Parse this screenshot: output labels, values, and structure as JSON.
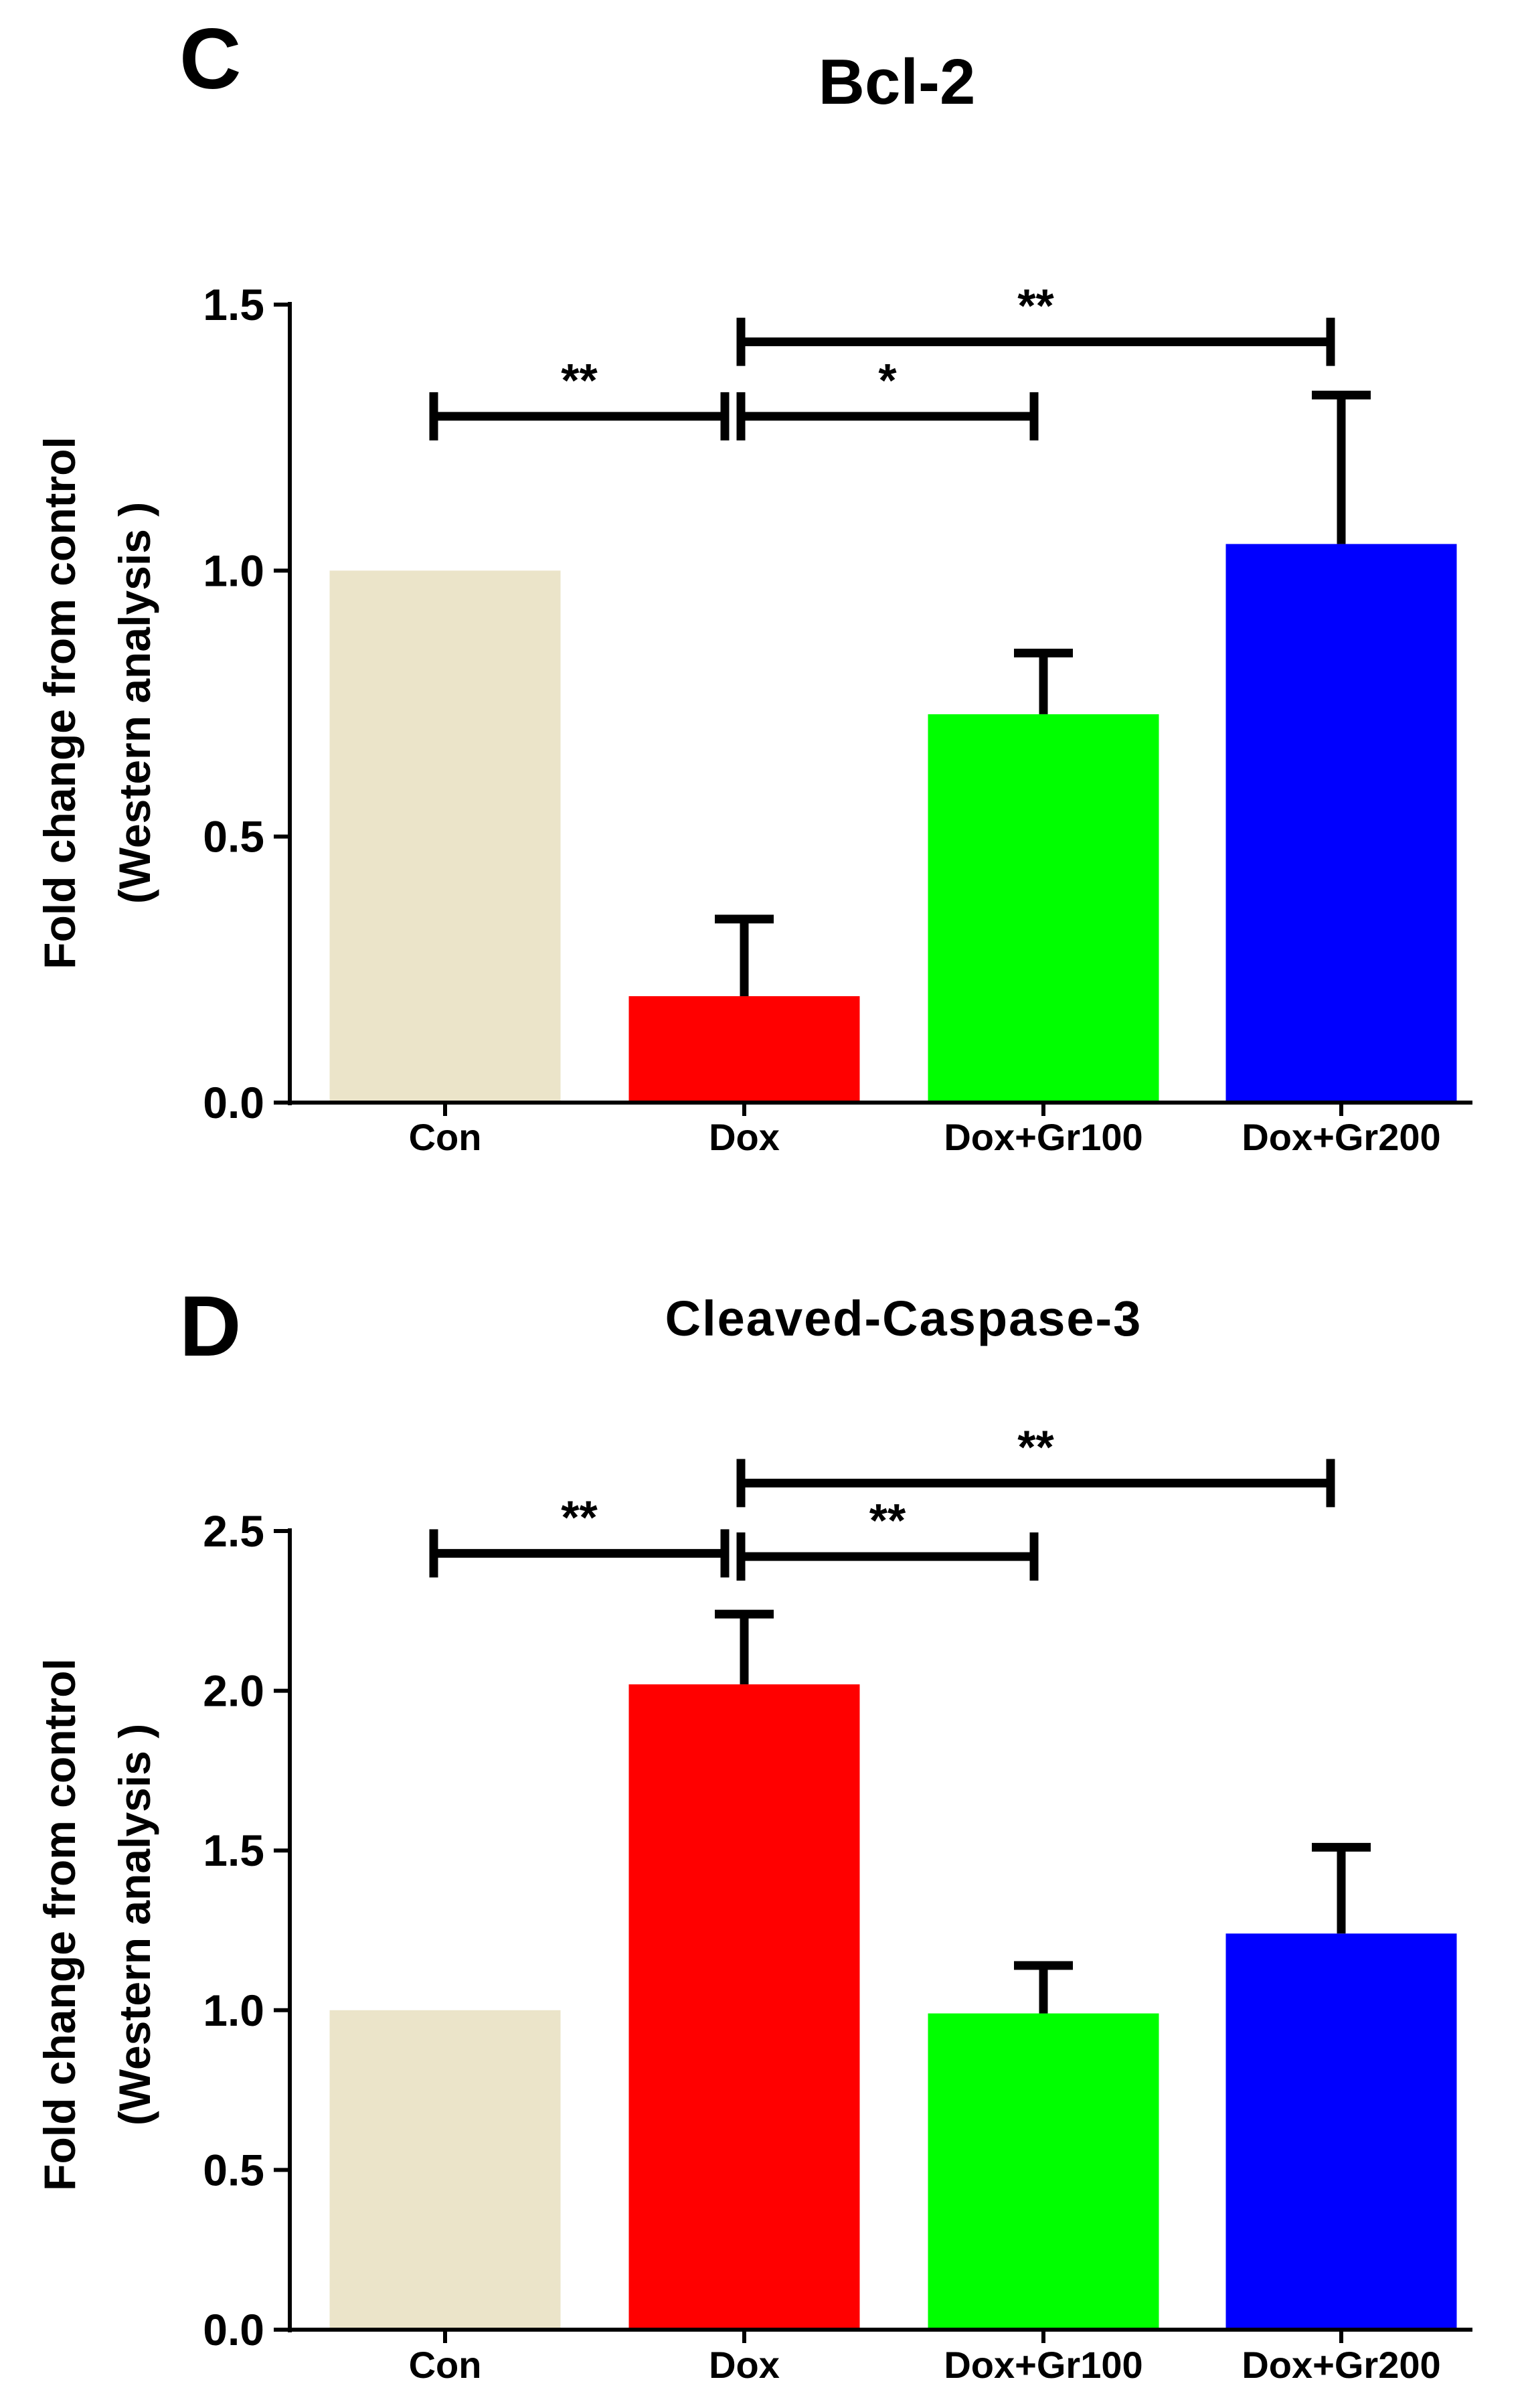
{
  "chart_data": [
    {
      "panel_letter": "C",
      "type": "bar",
      "title": "Bcl-2",
      "ylabel_lines": [
        "Fold change from control",
        "(Western analysis )"
      ],
      "ylim": [
        0,
        1.5
      ],
      "yticks": [
        0,
        0.5,
        1.0,
        1.5
      ],
      "ytick_labels": [
        "0.0",
        "0.5",
        "1.0",
        "1.5"
      ],
      "categories": [
        "Con",
        "Dox",
        "Dox+Gr100",
        "Dox+Gr200"
      ],
      "values": [
        1.0,
        0.2,
        0.73,
        1.05
      ],
      "errors": [
        0,
        0.145,
        0.115,
        0.28
      ],
      "colors": [
        "#ebe4c9",
        "#ff0000",
        "#00ff00",
        "#0000ff"
      ],
      "significance": [
        {
          "from": 0,
          "to": 1,
          "label": "**",
          "level": 1.29
        },
        {
          "from": 1,
          "to": 2,
          "label": "*",
          "level": 1.29
        },
        {
          "from": 1,
          "to": 3,
          "label": "**",
          "level": 1.43
        }
      ]
    },
    {
      "panel_letter": "D",
      "type": "bar",
      "title": "Cleaved-Caspase-3",
      "ylabel_lines": [
        "Fold change from control",
        "(Western analysis )"
      ],
      "ylim": [
        0,
        2.5
      ],
      "yticks": [
        0,
        0.5,
        1.0,
        1.5,
        2.0,
        2.5
      ],
      "ytick_labels": [
        "0.0",
        "0.5",
        "1.0",
        "1.5",
        "2.0",
        "2.5"
      ],
      "categories": [
        "Con",
        "Dox",
        "Dox+Gr100",
        "Dox+Gr200"
      ],
      "values": [
        1.0,
        2.02,
        0.99,
        1.24
      ],
      "errors": [
        0,
        0.22,
        0.15,
        0.27
      ],
      "colors": [
        "#ebe4c9",
        "#ff0000",
        "#00ff00",
        "#0000ff"
      ],
      "significance": [
        {
          "from": 0,
          "to": 1,
          "label": "**",
          "level": 2.43
        },
        {
          "from": 1,
          "to": 2,
          "label": "**",
          "level": 2.42
        },
        {
          "from": 1,
          "to": 3,
          "label": "**",
          "level": 2.65
        }
      ]
    }
  ]
}
